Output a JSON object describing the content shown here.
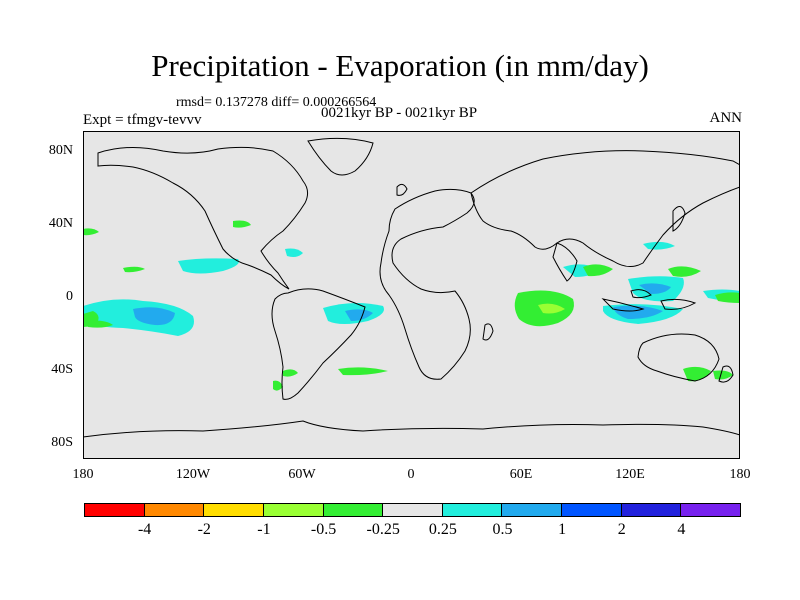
{
  "title": "Precipitation - Evaporation (in mm/day)",
  "stats": "rmsd= 0.137278 diff= 0.000266564",
  "experiment": "Expt = tfmgv-tevvv",
  "period": "0021kyr BP - 0021kyr BP",
  "season": "ANN",
  "lat_labels": [
    "80N",
    "40N",
    "0",
    "40S",
    "80S"
  ],
  "lon_labels": [
    "180",
    "120W",
    "60W",
    "0",
    "60E",
    "120E",
    "180"
  ],
  "colorbar": {
    "colors": [
      "#ff0000",
      "#ff8800",
      "#ffdd00",
      "#99ff33",
      "#33ee33",
      "#e6e6e6",
      "#22eedd",
      "#22aaee",
      "#0055ff",
      "#2222dd",
      "#7722ee"
    ],
    "labels": [
      "-4",
      "-2",
      "-1",
      "-0.5",
      "-0.25",
      "0.25",
      "0.5",
      "1",
      "2",
      "4"
    ]
  },
  "colors": {
    "land_ocean": "#e6e6e6",
    "positive_light": "#22eedd",
    "positive_mid": "#22aaee",
    "negative_light": "#33ee33",
    "negative_mid": "#99ff33"
  }
}
